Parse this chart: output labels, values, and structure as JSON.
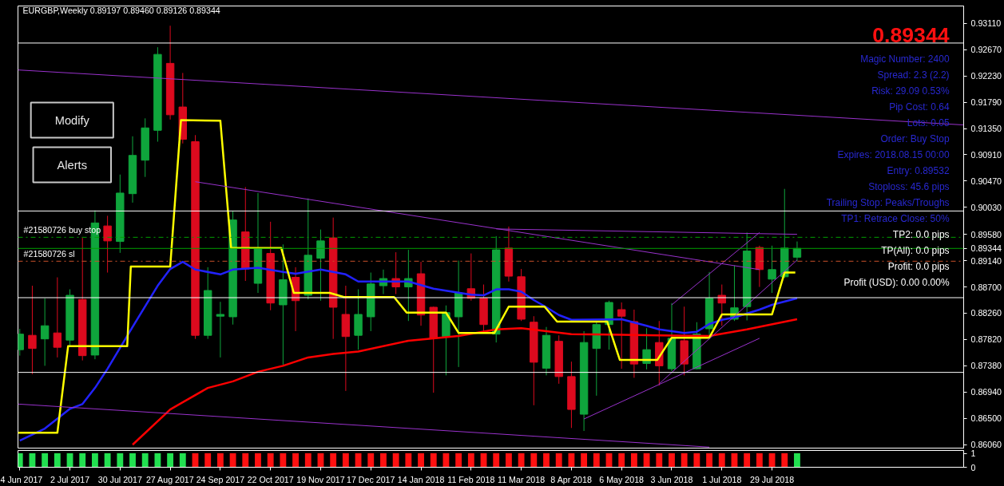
{
  "chart_data": [
    {
      "type": "candlestick",
      "title": "EURGBP,Weekly  0.89197 0.89460 0.89126 0.89344",
      "x": [
        "2017-06-04",
        "2017-06-11",
        "2017-06-18",
        "2017-06-25",
        "2017-07-02",
        "2017-07-09",
        "2017-07-16",
        "2017-07-23",
        "2017-07-30",
        "2017-08-06",
        "2017-08-13",
        "2017-08-20",
        "2017-08-27",
        "2017-09-03",
        "2017-09-10",
        "2017-09-17",
        "2017-09-24",
        "2017-10-01",
        "2017-10-08",
        "2017-10-15",
        "2017-10-22",
        "2017-10-29",
        "2017-11-05",
        "2017-11-12",
        "2017-11-19",
        "2017-11-26",
        "2017-12-03",
        "2017-12-10",
        "2017-12-17",
        "2017-12-24",
        "2017-12-31",
        "2018-01-07",
        "2018-01-14",
        "2018-01-21",
        "2018-01-28",
        "2018-02-04",
        "2018-02-11",
        "2018-02-18",
        "2018-02-25",
        "2018-03-04",
        "2018-03-11",
        "2018-03-18",
        "2018-03-25",
        "2018-04-01",
        "2018-04-08",
        "2018-04-15",
        "2018-04-22",
        "2018-04-29",
        "2018-05-06",
        "2018-05-13",
        "2018-05-20",
        "2018-05-27",
        "2018-06-03",
        "2018-06-10",
        "2018-06-17",
        "2018-06-24",
        "2018-07-01",
        "2018-07-08",
        "2018-07-15",
        "2018-07-22",
        "2018-07-29",
        "2018-08-05",
        "2018-08-12"
      ],
      "ohlc": [
        [
          0.8765,
          0.88,
          0.8755,
          0.8791
        ],
        [
          0.8789,
          0.8872,
          0.8724,
          0.8767
        ],
        [
          0.8783,
          0.8851,
          0.8738,
          0.8805
        ],
        [
          0.8793,
          0.8886,
          0.8752,
          0.8769
        ],
        [
          0.8781,
          0.8866,
          0.8771,
          0.8856
        ],
        [
          0.8849,
          0.8952,
          0.8747,
          0.8755
        ],
        [
          0.8756,
          0.8998,
          0.8749,
          0.8977
        ],
        [
          0.8972,
          0.8989,
          0.8894,
          0.8947
        ],
        [
          0.8946,
          0.9058,
          0.8927,
          0.9027
        ],
        [
          0.9026,
          0.9122,
          0.9011,
          0.909
        ],
        [
          0.9082,
          0.9152,
          0.9054,
          0.9136
        ],
        [
          0.9132,
          0.9271,
          0.9113,
          0.9259
        ],
        [
          0.9244,
          0.9307,
          0.915,
          0.9158
        ],
        [
          0.9171,
          0.9228,
          0.911,
          0.9117
        ],
        [
          0.9113,
          0.9124,
          0.8783,
          0.8789
        ],
        [
          0.8789,
          0.8903,
          0.8783,
          0.8864
        ],
        [
          0.8821,
          0.8845,
          0.8752,
          0.8824
        ],
        [
          0.882,
          0.8997,
          0.8807,
          0.8982
        ],
        [
          0.8962,
          0.9037,
          0.888,
          0.89
        ],
        [
          0.8876,
          0.9027,
          0.886,
          0.8934
        ],
        [
          0.8926,
          0.8979,
          0.8831,
          0.8843
        ],
        [
          0.884,
          0.8941,
          0.874,
          0.8882
        ],
        [
          0.8886,
          0.8903,
          0.8796,
          0.8847
        ],
        [
          0.8856,
          0.9018,
          0.8849,
          0.8923
        ],
        [
          0.8918,
          0.8966,
          0.8847,
          0.8947
        ],
        [
          0.8952,
          0.8986,
          0.8783,
          0.8836
        ],
        [
          0.8824,
          0.8872,
          0.8696,
          0.8787
        ],
        [
          0.8789,
          0.8866,
          0.8765,
          0.8824
        ],
        [
          0.882,
          0.8894,
          0.8796,
          0.8875
        ],
        [
          0.8872,
          0.8899,
          0.8858,
          0.8884
        ],
        [
          0.8884,
          0.8928,
          0.8858,
          0.887
        ],
        [
          0.887,
          0.8932,
          0.8813,
          0.8884
        ],
        [
          0.8892,
          0.8912,
          0.8805,
          0.8823
        ],
        [
          0.8836,
          0.8837,
          0.8693,
          0.8784
        ],
        [
          0.8787,
          0.8839,
          0.8722,
          0.8827
        ],
        [
          0.882,
          0.8914,
          0.8736,
          0.886
        ],
        [
          0.8867,
          0.8926,
          0.8847,
          0.8851
        ],
        [
          0.8851,
          0.8874,
          0.8796,
          0.8807
        ],
        [
          0.8791,
          0.8955,
          0.8777,
          0.8932
        ],
        [
          0.8935,
          0.8971,
          0.8879,
          0.8888
        ],
        [
          0.8887,
          0.89,
          0.8813,
          0.8816
        ],
        [
          0.8811,
          0.8821,
          0.8672,
          0.8744
        ],
        [
          0.8734,
          0.8803,
          0.8722,
          0.8789
        ],
        [
          0.8779,
          0.8789,
          0.8708,
          0.872
        ],
        [
          0.872,
          0.8745,
          0.8634,
          0.8665
        ],
        [
          0.8657,
          0.8796,
          0.8629,
          0.8777
        ],
        [
          0.8767,
          0.8811,
          0.8688,
          0.8807
        ],
        [
          0.8807,
          0.8847,
          0.8765,
          0.8844
        ],
        [
          0.8832,
          0.8844,
          0.8733,
          0.8821
        ],
        [
          0.8812,
          0.8832,
          0.8718,
          0.8741
        ],
        [
          0.8742,
          0.8801,
          0.8732,
          0.8765
        ],
        [
          0.8777,
          0.8813,
          0.8705,
          0.8738
        ],
        [
          0.8733,
          0.8843,
          0.8729,
          0.8784
        ],
        [
          0.878,
          0.8837,
          0.8722,
          0.8741
        ],
        [
          0.8733,
          0.8811,
          0.8732,
          0.8791
        ],
        [
          0.88,
          0.8895,
          0.8788,
          0.8851
        ],
        [
          0.8856,
          0.8874,
          0.8805,
          0.8843
        ],
        [
          0.8816,
          0.8906,
          0.8813,
          0.8835
        ],
        [
          0.8837,
          0.8961,
          0.8814,
          0.893
        ],
        [
          0.8936,
          0.8939,
          0.887,
          0.8899
        ],
        [
          0.8883,
          0.8939,
          0.886,
          0.8899
        ],
        [
          0.8887,
          0.9034,
          0.8885,
          0.8935
        ],
        [
          0.89197,
          0.8946,
          0.89126,
          0.89344
        ]
      ],
      "colors": [
        "#0fa53c",
        "#dc0a1e",
        "#0fa53c",
        "#dc0a1e",
        "#0fa53c",
        "#dc0a1e",
        "#0fa53c",
        "#dc0a1e",
        "#0fa53c",
        "#0fa53c",
        "#0fa53c",
        "#0fa53c",
        "#dc0a1e",
        "#dc0a1e",
        "#dc0a1e",
        "#0fa53c",
        "#0fa53c",
        "#0fa53c",
        "#dc0a1e",
        "#0fa53c",
        "#dc0a1e",
        "#0fa53c",
        "#dc0a1e",
        "#0fa53c",
        "#0fa53c",
        "#dc0a1e",
        "#dc0a1e",
        "#0fa53c",
        "#0fa53c",
        "#0fa53c",
        "#dc0a1e",
        "#0fa53c",
        "#dc0a1e",
        "#dc0a1e",
        "#0fa53c",
        "#0fa53c",
        "#dc0a1e",
        "#dc0a1e",
        "#0fa53c",
        "#dc0a1e",
        "#dc0a1e",
        "#dc0a1e",
        "#0fa53c",
        "#dc0a1e",
        "#dc0a1e",
        "#0fa53c",
        "#0fa53c",
        "#0fa53c",
        "#dc0a1e",
        "#dc0a1e",
        "#0fa53c",
        "#dc0a1e",
        "#0fa53c",
        "#dc0a1e",
        "#0fa53c",
        "#0fa53c",
        "#dc0a1e",
        "#0fa53c",
        "#0fa53c",
        "#dc0a1e",
        "#0fa53c",
        "#0fa53c",
        "#0fa53c"
      ],
      "series": [
        {
          "type": "line",
          "color": "#2222ff",
          "x": [
            "2017-06-04",
            "2017-06-18",
            "2017-07-02",
            "2017-07-09",
            "2017-07-16",
            "2017-07-23",
            "2017-08-06",
            "2017-08-20",
            "2017-08-27",
            "2017-09-03",
            "2017-09-10",
            "2017-09-24",
            "2017-10-01",
            "2017-10-15",
            "2017-10-29",
            "2017-11-05",
            "2017-11-19",
            "2017-12-03",
            "2017-12-10",
            "2018-01-07",
            "2018-01-21",
            "2018-02-11",
            "2018-02-18",
            "2018-02-25",
            "2018-03-04",
            "2018-03-11",
            "2018-03-18",
            "2018-03-25",
            "2018-04-01",
            "2018-04-08",
            "2018-05-06",
            "2018-05-20",
            "2018-05-27",
            "2018-06-10",
            "2018-06-17",
            "2018-06-24",
            "2018-07-01",
            "2018-07-08",
            "2018-07-22",
            "2018-07-29",
            "2018-08-12"
          ],
          "values": [
            0.8613,
            0.8633,
            0.8666,
            0.8674,
            0.8701,
            0.8733,
            0.8803,
            0.8872,
            0.89,
            0.8912,
            0.8899,
            0.8891,
            0.8899,
            0.8902,
            0.8895,
            0.8892,
            0.8899,
            0.8891,
            0.8879,
            0.8879,
            0.8867,
            0.8857,
            0.8856,
            0.8866,
            0.8866,
            0.8862,
            0.8848,
            0.8836,
            0.8823,
            0.8815,
            0.8816,
            0.8805,
            0.8799,
            0.8793,
            0.8795,
            0.8808,
            0.8815,
            0.8819,
            0.8832,
            0.884,
            0.8851
          ]
        },
        {
          "type": "line",
          "color": "#ff0000",
          "x": [
            "2017-08-06",
            "2017-08-27",
            "2017-09-17",
            "2017-10-01",
            "2017-10-15",
            "2017-10-29",
            "2017-11-12",
            "2017-11-26",
            "2017-12-10",
            "2018-01-07",
            "2018-02-04",
            "2018-02-25",
            "2018-03-11",
            "2018-04-08",
            "2018-05-27",
            "2018-06-24",
            "2018-07-15",
            "2018-08-12"
          ],
          "values": [
            0.8606,
            0.8665,
            0.8701,
            0.8712,
            0.8728,
            0.8738,
            0.8752,
            0.8758,
            0.8762,
            0.878,
            0.8788,
            0.8799,
            0.8801,
            0.8791,
            0.8789,
            0.8788,
            0.8799,
            0.8816
          ]
        },
        {
          "type": "line",
          "color": "#ffff00",
          "x": [
            "2017-06-03",
            "2017-06-25",
            "2017-07-01",
            "2017-08-03",
            "2017-08-05",
            "2017-08-27",
            "2017-09-02",
            "2017-09-24",
            "2017-09-30",
            "2017-10-28",
            "2017-11-04",
            "2017-11-24",
            "2017-12-02",
            "2017-12-30",
            "2018-01-06",
            "2018-01-28",
            "2018-02-04",
            "2018-02-24",
            "2018-03-04",
            "2018-03-24",
            "2018-03-31",
            "2018-04-28",
            "2018-05-05",
            "2018-05-26",
            "2018-06-03",
            "2018-06-24",
            "2018-07-01",
            "2018-07-29",
            "2018-08-05",
            "2018-08-11"
          ],
          "values": [
            0.8626,
            0.8626,
            0.8771,
            0.8771,
            0.8904,
            0.8904,
            0.9149,
            0.9148,
            0.8935,
            0.8935,
            0.886,
            0.886,
            0.8853,
            0.8853,
            0.8827,
            0.8827,
            0.8793,
            0.8793,
            0.8837,
            0.8837,
            0.8812,
            0.8812,
            0.8748,
            0.8748,
            0.8785,
            0.8785,
            0.8824,
            0.8824,
            0.8894,
            0.8894
          ]
        },
        {
          "type": "line",
          "color": "#9932cc",
          "x": [
            "2017-06-03",
            "2018-11-13"
          ],
          "values": [
            0.9233,
            0.9141
          ]
        },
        {
          "type": "line",
          "color": "#9932cc",
          "x": [
            "2017-09-10",
            "2018-07-22"
          ],
          "values": [
            0.9046,
            0.8899
          ]
        },
        {
          "type": "line",
          "color": "#9932cc",
          "x": [
            "2017-06-03",
            "2018-06-24"
          ],
          "values": [
            0.8674,
            0.8602
          ]
        },
        {
          "type": "line",
          "color": "#9932cc",
          "x": [
            "2018-02-25",
            "2018-08-12"
          ],
          "values": [
            0.8967,
            0.8958
          ]
        },
        {
          "type": "line",
          "color": "#9932cc",
          "x": [
            "2018-04-15",
            "2018-07-22"
          ],
          "values": [
            0.8649,
            0.8784
          ]
        },
        {
          "type": "line",
          "color": "#9932cc",
          "x": [
            "2018-06-03",
            "2018-07-22"
          ],
          "values": [
            0.884,
            0.8961
          ]
        },
        {
          "type": "line",
          "color": "#9932cc",
          "x": [
            "2018-05-27",
            "2018-08-12"
          ],
          "values": [
            0.8708,
            0.8915
          ]
        }
      ],
      "ref_lines": [
        {
          "axis": "y",
          "value": 0.8953,
          "label": "#21580726 buy stop",
          "color": "#00a000",
          "line_style": "dashed"
        },
        {
          "axis": "y",
          "value": 0.89344,
          "color": "#00a000",
          "line_style": "solid"
        },
        {
          "axis": "y",
          "value": 0.8913,
          "label": "#21580726 sl",
          "color": "#c8502a",
          "line_style": "dashed"
        },
        {
          "axis": "y",
          "value": 0.9278,
          "color": "#ffffff",
          "line_style": "solid"
        },
        {
          "axis": "y",
          "value": 0.8997,
          "color": "#ffffff",
          "line_style": "solid"
        },
        {
          "axis": "y",
          "value": 0.8852,
          "color": "#ffffff",
          "line_style": "solid"
        },
        {
          "axis": "y",
          "value": 0.8727,
          "color": "#ffffff",
          "line_style": "solid"
        }
      ],
      "xlim": [
        "2017-06-03",
        "2018-11-13"
      ],
      "ylim": [
        0.8599,
        0.934
      ],
      "yticks": [
        {
          "value": 0.9311,
          "label": "0.93110"
        },
        {
          "value": 0.9267,
          "label": "0.92670"
        },
        {
          "value": 0.9223,
          "label": "0.92230"
        },
        {
          "value": 0.9179,
          "label": "0.91790"
        },
        {
          "value": 0.9135,
          "label": "0.91350"
        },
        {
          "value": 0.9091,
          "label": "0.90910"
        },
        {
          "value": 0.9047,
          "label": "0.90470"
        },
        {
          "value": 0.9003,
          "label": "0.90030"
        },
        {
          "value": 0.8958,
          "label": "0.89580"
        },
        {
          "value": 0.89344,
          "label": "0.89344"
        },
        {
          "value": 0.8914,
          "label": "0.89140"
        },
        {
          "value": 0.887,
          "label": "0.88700"
        },
        {
          "value": 0.8826,
          "label": "0.88260"
        },
        {
          "value": 0.8782,
          "label": "0.87820"
        },
        {
          "value": 0.8738,
          "label": "0.87380"
        },
        {
          "value": 0.8694,
          "label": "0.86940"
        },
        {
          "value": 0.865,
          "label": "0.86500"
        },
        {
          "value": 0.8606,
          "label": "0.86060"
        }
      ],
      "tick_labels": "y",
      "annotations": [
        "Modify",
        "Alerts",
        "0.89344",
        "Magic Number: 2400",
        "Spread: 2.3 (2.2)",
        "Risk: 29.09 0.53%",
        "Pip Cost: 0.64",
        "Lots: 0.05",
        "Order: Buy Stop",
        "Expires: 2018.08.15 00:00",
        "Entry: 0.89532",
        "Stoploss: 45.6 pips",
        "Trailing Stop: Peaks/Troughs",
        "TP1: Retrace Close: 50%",
        "TP2: 0.0 pips",
        "TP(All): 0.0 pips",
        "Profit: 0.0 pips",
        "Profit (USD): 0.00 0.00%"
      ]
    },
    {
      "type": "bar",
      "x": [
        "2017-06-04",
        "2017-06-11",
        "2017-06-18",
        "2017-06-25",
        "2017-07-02",
        "2017-07-09",
        "2017-07-16",
        "2017-07-23",
        "2017-07-30",
        "2017-08-06",
        "2017-08-13",
        "2017-08-20",
        "2017-08-27",
        "2017-09-03",
        "2017-09-10",
        "2017-09-17",
        "2017-09-24",
        "2017-10-01",
        "2017-10-08",
        "2017-10-15",
        "2017-10-22",
        "2017-10-29",
        "2017-11-05",
        "2017-11-12",
        "2017-11-19",
        "2017-11-26",
        "2017-12-03",
        "2017-12-10",
        "2017-12-17",
        "2017-12-24",
        "2017-12-31",
        "2018-01-07",
        "2018-01-14",
        "2018-01-21",
        "2018-01-28",
        "2018-02-04",
        "2018-02-11",
        "2018-02-18",
        "2018-02-25",
        "2018-03-04",
        "2018-03-11",
        "2018-03-18",
        "2018-03-25",
        "2018-04-01",
        "2018-04-08",
        "2018-04-15",
        "2018-04-22",
        "2018-04-29",
        "2018-05-06",
        "2018-05-13",
        "2018-05-20",
        "2018-05-27",
        "2018-06-03",
        "2018-06-10",
        "2018-06-17",
        "2018-06-24",
        "2018-07-01",
        "2018-07-08",
        "2018-07-15",
        "2018-07-22",
        "2018-07-29",
        "2018-08-05",
        "2018-08-12"
      ],
      "values": [
        1,
        1,
        1,
        1,
        1,
        1,
        1,
        1,
        1,
        1,
        1,
        1,
        1,
        1,
        1,
        1,
        1,
        1,
        1,
        1,
        1,
        1,
        1,
        1,
        1,
        1,
        1,
        1,
        1,
        1,
        1,
        1,
        1,
        1,
        1,
        1,
        1,
        1,
        1,
        1,
        1,
        1,
        1,
        1,
        1,
        1,
        1,
        1,
        1,
        1,
        1,
        1,
        1,
        1,
        1,
        1,
        1,
        1,
        1,
        1,
        1,
        1,
        1
      ],
      "colors": [
        "#22e050",
        "#22e050",
        "#22e050",
        "#22e050",
        "#22e050",
        "#22e050",
        "#22e050",
        "#22e050",
        "#22e050",
        "#22e050",
        "#22e050",
        "#22e050",
        "#22e050",
        "#22e050",
        "#ff1010",
        "#ff1010",
        "#ff1010",
        "#ff1010",
        "#ff1010",
        "#ff1010",
        "#ff1010",
        "#ff1010",
        "#ff1010",
        "#ff1010",
        "#ff1010",
        "#ff1010",
        "#ff1010",
        "#ff1010",
        "#ff1010",
        "#ff1010",
        "#ff1010",
        "#ff1010",
        "#ff1010",
        "#ff1010",
        "#ff1010",
        "#ff1010",
        "#ff1010",
        "#ff1010",
        "#ff1010",
        "#ff1010",
        "#ff1010",
        "#ff1010",
        "#ff1010",
        "#ff1010",
        "#ff1010",
        "#ff1010",
        "#ff1010",
        "#ff1010",
        "#ff1010",
        "#ff1010",
        "#ff1010",
        "#ff1010",
        "#ff1010",
        "#ff1010",
        "#ff1010",
        "#ff1010",
        "#ff1010",
        "#ff1010",
        "#ff1010",
        "#ff1010",
        "#ff1010",
        "#ff1010",
        "#22e050"
      ],
      "xlim": [
        "2017-06-03",
        "2018-11-13"
      ],
      "ylim": [
        0,
        1.2
      ],
      "yticks": [
        0,
        1
      ],
      "xticks": [
        {
          "value": "2017-06-04",
          "label": "4 Jun 2017"
        },
        {
          "value": "2017-07-02",
          "label": "2 Jul 2017"
        },
        {
          "value": "2017-07-30",
          "label": "30 Jul 2017"
        },
        {
          "value": "2017-08-27",
          "label": "27 Aug 2017"
        },
        {
          "value": "2017-09-24",
          "label": "24 Sep 2017"
        },
        {
          "value": "2017-10-22",
          "label": "22 Oct 2017"
        },
        {
          "value": "2017-11-19",
          "label": "19 Nov 2017"
        },
        {
          "value": "2017-12-17",
          "label": "17 Dec 2017"
        },
        {
          "value": "2018-01-14",
          "label": "14 Jan 2018"
        },
        {
          "value": "2018-02-11",
          "label": "11 Feb 2018"
        },
        {
          "value": "2018-03-11",
          "label": "11 Mar 2018"
        },
        {
          "value": "2018-04-08",
          "label": "8 Apr 2018"
        },
        {
          "value": "2018-05-06",
          "label": "6 May 2018"
        },
        {
          "value": "2018-06-03",
          "label": "3 Jun 2018"
        },
        {
          "value": "2018-07-01",
          "label": "1 Jul 2018"
        },
        {
          "value": "2018-07-29",
          "label": "29 Jul 2018"
        }
      ]
    }
  ]
}
